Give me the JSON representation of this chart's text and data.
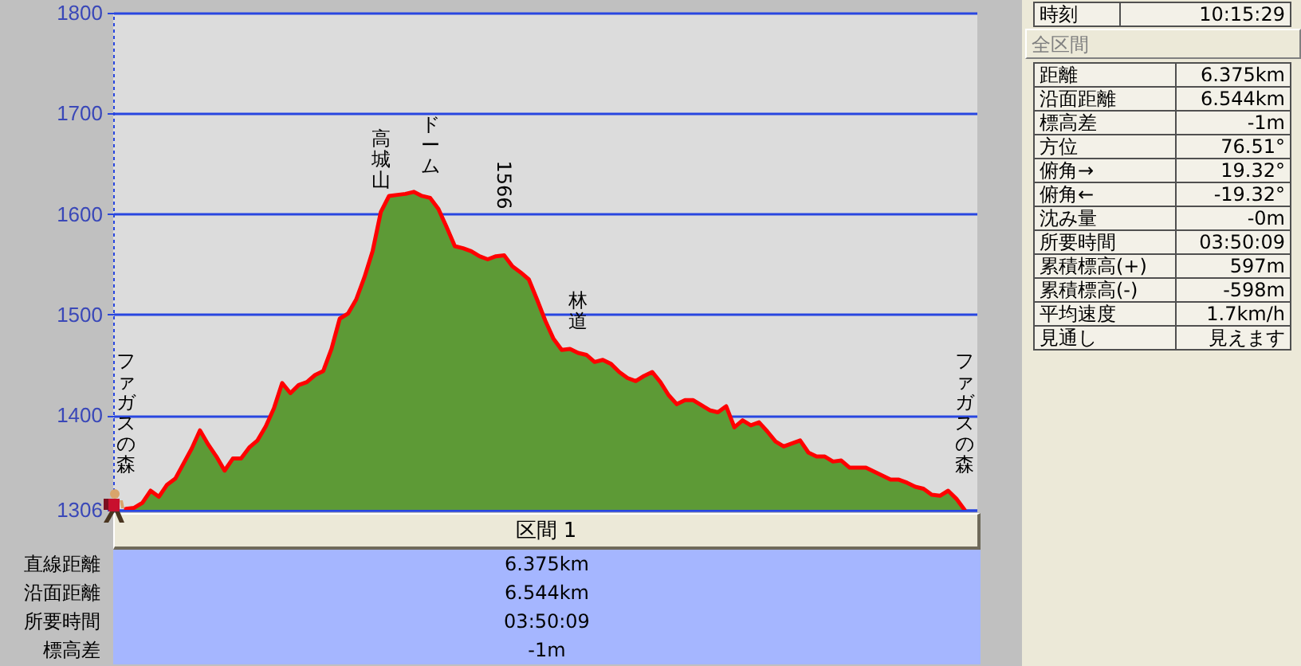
{
  "chart_data": [
    {
      "type": "area",
      "categories": [
        "ファガスの森",
        null,
        null,
        null,
        null,
        null,
        null,
        null,
        null,
        null,
        null,
        null,
        null,
        null,
        null,
        null,
        null,
        null,
        null,
        null,
        null,
        null,
        null,
        null,
        null,
        null,
        null,
        null,
        null,
        null,
        null,
        "高城山",
        null,
        null,
        null,
        null,
        null,
        "ドーム",
        null,
        null,
        null,
        null,
        null,
        null,
        null,
        null,
        "1566",
        null,
        null,
        null,
        null,
        null,
        null,
        null,
        null,
        "林道",
        null,
        null,
        null,
        null,
        null,
        null,
        null,
        null,
        null,
        null,
        null,
        null,
        null,
        null,
        null,
        null,
        null,
        null,
        null,
        null,
        null,
        null,
        null,
        null,
        null,
        null,
        null,
        null,
        null,
        null,
        null,
        null,
        null,
        null,
        null,
        null,
        null,
        null,
        null,
        null,
        null,
        null,
        null,
        null,
        null,
        null,
        "ファガスの森"
      ],
      "ylim": [
        1306,
        1800
      ],
      "yticks": [
        1306,
        1400,
        1500,
        1600,
        1700,
        1800
      ],
      "grid": "y",
      "series": [
        {
          "color": "#5d9a36",
          "values": [
            1307,
            1308,
            1313,
            1325,
            1319,
            1331,
            1337,
            1352,
            1367,
            1385,
            1371,
            1359,
            1345,
            1357,
            1357,
            1368,
            1375,
            1389,
            1407,
            1432,
            1422,
            1430,
            1433,
            1440,
            1444,
            1466,
            1496,
            1501,
            1515,
            1537,
            1563,
            1602,
            1618,
            1619,
            1620,
            1622,
            1618,
            1616,
            1605,
            1587,
            1568,
            1566,
            1563,
            1558,
            1555,
            1558,
            1559,
            1548,
            1542,
            1535,
            1515,
            1494,
            1476,
            1465,
            1466,
            1462,
            1460,
            1453,
            1455,
            1451,
            1443,
            1437,
            1434,
            1439,
            1443,
            1433,
            1420,
            1411,
            1415,
            1415,
            1410,
            1405,
            1403,
            1409,
            1388,
            1395,
            1390,
            1393,
            1384,
            1374,
            1369,
            1372,
            1375,
            1363,
            1359,
            1359,
            1354,
            1355,
            1348,
            1348,
            1348,
            1344,
            1340,
            1336,
            1336,
            1333,
            1329,
            1327,
            1321,
            1320,
            1325,
            1317,
            1306
          ]
        },
        {
          "type": "line",
          "color": "#ff0000",
          "values": [
            1307,
            1308,
            1313,
            1325,
            1319,
            1331,
            1337,
            1352,
            1367,
            1385,
            1371,
            1359,
            1345,
            1357,
            1357,
            1368,
            1375,
            1389,
            1407,
            1432,
            1422,
            1430,
            1433,
            1440,
            1444,
            1466,
            1496,
            1501,
            1515,
            1537,
            1563,
            1602,
            1618,
            1619,
            1620,
            1622,
            1618,
            1616,
            1605,
            1587,
            1568,
            1566,
            1563,
            1558,
            1555,
            1558,
            1559,
            1548,
            1542,
            1535,
            1515,
            1494,
            1476,
            1465,
            1466,
            1462,
            1460,
            1453,
            1455,
            1451,
            1443,
            1437,
            1434,
            1439,
            1443,
            1433,
            1420,
            1411,
            1415,
            1415,
            1410,
            1405,
            1403,
            1409,
            1388,
            1395,
            1390,
            1393,
            1384,
            1374,
            1369,
            1372,
            1375,
            1363,
            1359,
            1359,
            1354,
            1355,
            1348,
            1348,
            1348,
            1344,
            1340,
            1336,
            1336,
            1333,
            1329,
            1327,
            1321,
            1320,
            1325,
            1317,
            1306
          ]
        }
      ]
    },
    {
      "type": "other",
      "annotations": [
        "時刻",
        "10:15:29"
      ]
    },
    {
      "type": "other",
      "title": "全区間",
      "annotations": [
        "距離",
        "6.375km",
        "沿面距離",
        "6.544km",
        "標高差",
        "-1m",
        "方位",
        "76.51°",
        "俯角→",
        "19.32°",
        "俯角←",
        "-19.32°",
        "沈み量",
        "-0m",
        "所要時間",
        "03:50:09",
        "累積標高(+)",
        "597m",
        "累積標高(-)",
        "-598m",
        "平均速度",
        "1.7km/h",
        "見通し",
        "見えます"
      ]
    },
    {
      "type": "other",
      "title": "区間 1",
      "annotations": [
        "直線距離",
        "6.375km",
        "沿面距離",
        "6.544km",
        "所要時間",
        "03:50:09",
        "標高差",
        "-1m"
      ]
    }
  ]
}
